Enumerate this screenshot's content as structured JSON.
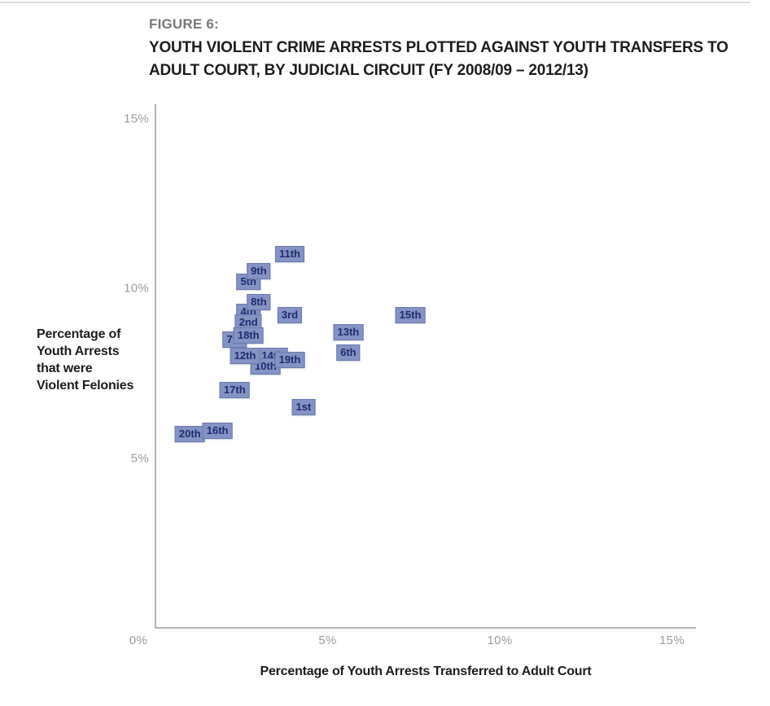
{
  "page": {
    "figure_label": "FIGURE 6:",
    "title_line1": "YOUTH VIOLENT CRIME ARRESTS PLOTTED AGAINST YOUTH TRANSFERS TO",
    "title_line2": "ADULT COURT, BY JUDICIAL CIRCUIT (FY 2008/09 – 2012/13)"
  },
  "chart_data": {
    "type": "scatter",
    "title": "Youth violent crime arrests plotted against youth transfers to adult court, by judicial circuit (FY 2008/09 – 2012/13)",
    "xlabel": "Percentage of Youth Arrests Transferred to Adult Court",
    "ylabel": "Percentage of Youth Arrests that were Violent Felonies",
    "ylabel_lines": [
      "Percentage of",
      "Youth Arrests",
      "that were",
      "Violent Felonies"
    ],
    "x_tick_labels": [
      "0%",
      "5%",
      "10%",
      "15%"
    ],
    "x_tick_values": [
      0,
      5,
      10,
      15
    ],
    "y_tick_labels": [
      "5%",
      "10%",
      "15%"
    ],
    "y_tick_values": [
      5,
      10,
      15
    ],
    "xlim": [
      0,
      15.7
    ],
    "ylim": [
      0,
      15.4
    ],
    "grid": false,
    "legend": false,
    "marker_style": {
      "background": "#8492c4",
      "border": "#6b7cae",
      "text_color": "#1f2d6e"
    },
    "points": [
      {
        "label": "1st",
        "x": 4.3,
        "y": 6.5
      },
      {
        "label": "2nd",
        "x": 2.7,
        "y": 9.0
      },
      {
        "label": "3rd",
        "x": 3.9,
        "y": 9.2
      },
      {
        "label": "4th",
        "x": 2.7,
        "y": 9.3
      },
      {
        "label": "5th",
        "x": 2.7,
        "y": 10.2
      },
      {
        "label": "6th",
        "x": 5.6,
        "y": 8.1
      },
      {
        "label": "7th",
        "x": 2.3,
        "y": 8.5
      },
      {
        "label": "8th",
        "x": 3.0,
        "y": 9.6
      },
      {
        "label": "9th",
        "x": 3.0,
        "y": 10.5
      },
      {
        "label": "10th",
        "x": 3.2,
        "y": 7.7
      },
      {
        "label": "11th",
        "x": 3.9,
        "y": 11.0
      },
      {
        "label": "12th",
        "x": 2.6,
        "y": 8.0
      },
      {
        "label": "13th",
        "x": 5.6,
        "y": 8.7
      },
      {
        "label": "14th",
        "x": 3.4,
        "y": 8.0
      },
      {
        "label": "15th",
        "x": 7.4,
        "y": 9.2
      },
      {
        "label": "16th",
        "x": 1.8,
        "y": 5.8
      },
      {
        "label": "17th",
        "x": 2.3,
        "y": 7.0
      },
      {
        "label": "18th",
        "x": 2.7,
        "y": 8.6
      },
      {
        "label": "19th",
        "x": 3.9,
        "y": 7.9
      },
      {
        "label": "20th",
        "x": 1.0,
        "y": 5.7
      }
    ],
    "draw_order": [
      "5th",
      "4th",
      "7th",
      "14th",
      "10th",
      "20th",
      "9th",
      "8th",
      "2nd",
      "18th",
      "12th",
      "19th",
      "16th",
      "11th",
      "3rd",
      "13th",
      "6th",
      "15th",
      "17th",
      "1st"
    ]
  }
}
